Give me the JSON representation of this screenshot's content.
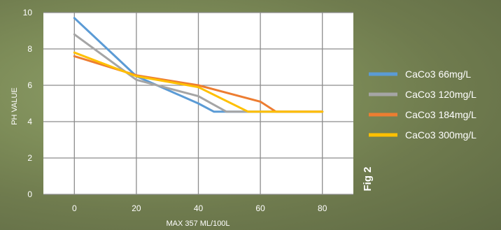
{
  "chart_data": {
    "type": "line",
    "xlabel": "MAX 357 ML/100L",
    "ylabel": "PH VALUE",
    "x_ticks": [
      0,
      20,
      40,
      60,
      80
    ],
    "y_ticks": [
      0,
      2,
      4,
      6,
      8,
      10
    ],
    "xlim": [
      -10,
      90
    ],
    "ylim": [
      0,
      10
    ],
    "grid": true,
    "legend": "right",
    "side_label": "Fig 2",
    "series": [
      {
        "name": "CaCo3 66mg/L",
        "color": "#5b9bd5",
        "points": [
          [
            0,
            9.7
          ],
          [
            20,
            6.5
          ],
          [
            40,
            5.0
          ],
          [
            45,
            4.55
          ],
          [
            80,
            4.55
          ]
        ]
      },
      {
        "name": "CaCo3 120mg/L",
        "color": "#a5a5a5",
        "points": [
          [
            0,
            8.8
          ],
          [
            20,
            6.3
          ],
          [
            40,
            5.4
          ],
          [
            49,
            4.55
          ],
          [
            80,
            4.55
          ]
        ]
      },
      {
        "name": "CaCo3 184mg/L",
        "color": "#ed7d31",
        "points": [
          [
            0,
            7.6
          ],
          [
            20,
            6.55
          ],
          [
            40,
            6.0
          ],
          [
            60,
            5.1
          ],
          [
            65,
            4.55
          ],
          [
            80,
            4.55
          ]
        ]
      },
      {
        "name": "CaCo3 300mg/L",
        "color": "#ffc000",
        "points": [
          [
            0,
            7.8
          ],
          [
            20,
            6.5
          ],
          [
            40,
            5.9
          ],
          [
            56,
            4.55
          ],
          [
            80,
            4.55
          ]
        ]
      }
    ]
  }
}
